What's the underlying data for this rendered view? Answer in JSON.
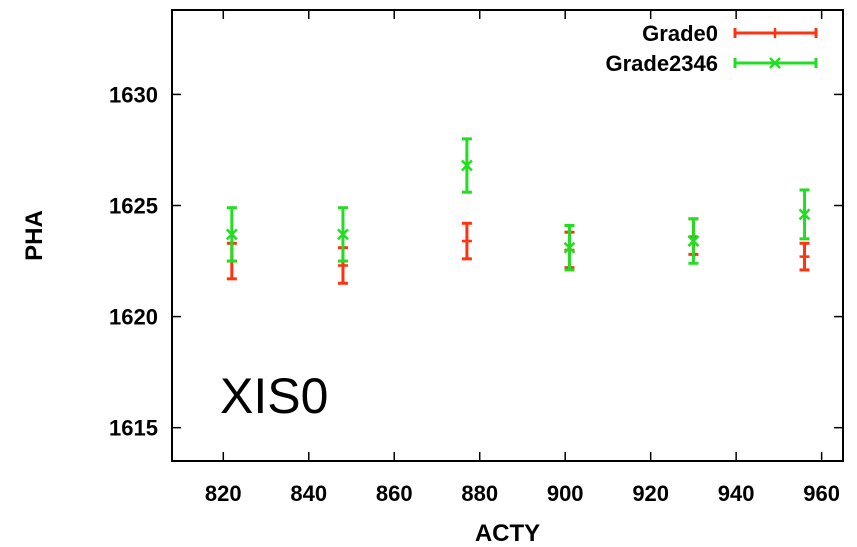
{
  "chart_data": {
    "type": "scatter",
    "xlabel": "ACTY",
    "ylabel": "PHA",
    "xlim": [
      808,
      965
    ],
    "ylim": [
      1613.5,
      1633.8
    ],
    "x_ticks": [
      820,
      840,
      860,
      880,
      900,
      920,
      940,
      960
    ],
    "y_ticks": [
      1615,
      1620,
      1625,
      1630
    ],
    "grid": false,
    "legend_position": "top-right",
    "annotation": "XIS0",
    "series": [
      {
        "name": "Grade0",
        "color": "#ff3311",
        "marker": "plus",
        "x": [
          822,
          848,
          877,
          901,
          930,
          956
        ],
        "y": [
          1622.5,
          1622.3,
          1623.4,
          1623.0,
          1623.6,
          1622.7
        ],
        "yerr": [
          0.8,
          0.8,
          0.8,
          0.8,
          0.8,
          0.6
        ]
      },
      {
        "name": "Grade2346",
        "color": "#22dd22",
        "marker": "x",
        "x": [
          822,
          848,
          877,
          901,
          930,
          956
        ],
        "y": [
          1623.7,
          1623.7,
          1626.8,
          1623.1,
          1623.4,
          1624.6
        ],
        "yerr": [
          1.2,
          1.2,
          1.2,
          1.0,
          1.0,
          1.1
        ]
      }
    ]
  }
}
